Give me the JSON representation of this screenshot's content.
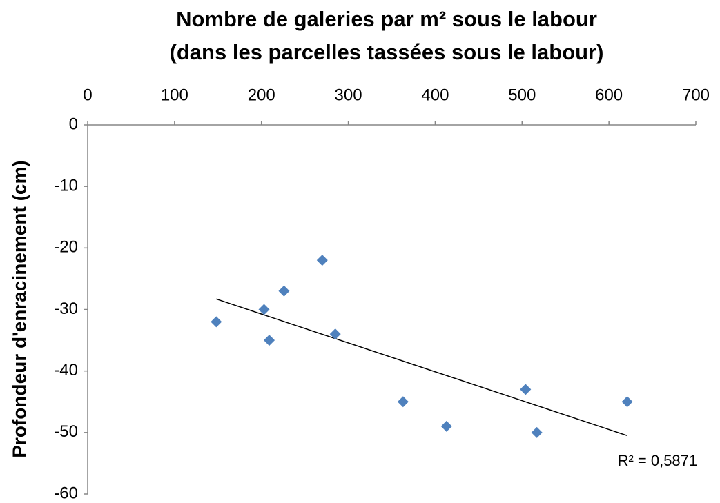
{
  "chart_data": {
    "type": "scatter",
    "title": [
      "Nombre de galeries par m² sous le labour",
      "(dans les parcelles tassées sous le labour)"
    ],
    "y_label": "Profondeur d'enracinement (cm)",
    "x": [
      148,
      203,
      209,
      226,
      270,
      285,
      363,
      413,
      504,
      517,
      621
    ],
    "values": [
      -32,
      -30,
      -35,
      -27,
      -22,
      -34,
      -45,
      -49,
      -43,
      -50,
      -45
    ],
    "color": "#4f81bd",
    "xlim": [
      0,
      700
    ],
    "xticks": [
      0,
      100,
      200,
      300,
      400,
      500,
      600,
      700
    ],
    "ylim": [
      -60,
      0
    ],
    "yticks": [
      0,
      -10,
      -20,
      -30,
      -40,
      -50,
      -60
    ],
    "x_axis_position": "top",
    "trendline": {
      "x": [
        148,
        621
      ],
      "y": [
        -28.3,
        -50.5
      ],
      "label": "R² = 0,5871"
    }
  }
}
